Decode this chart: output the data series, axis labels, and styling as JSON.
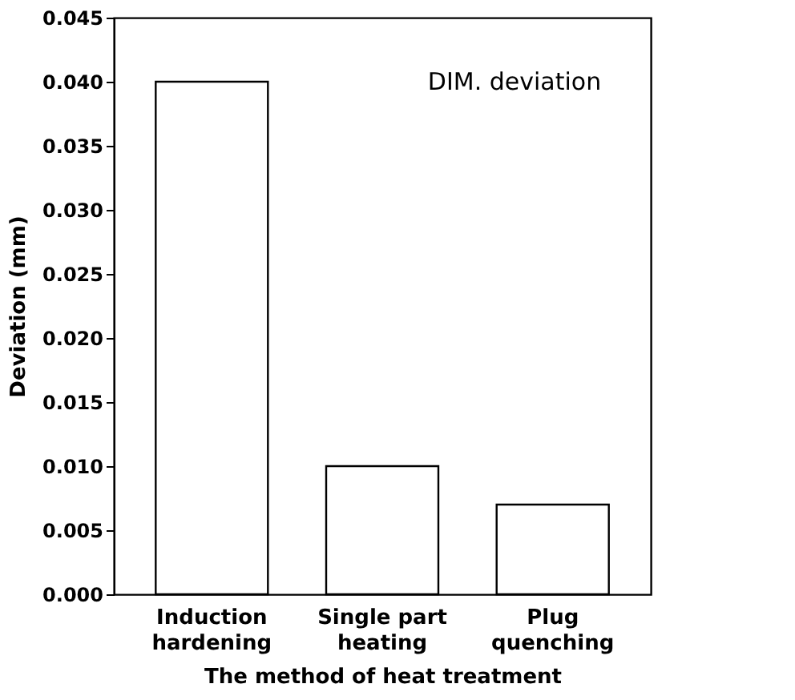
{
  "chart_data": {
    "type": "bar",
    "categories": [
      "Induction hardening",
      "Single part heating",
      "Plug quenching"
    ],
    "values": [
      0.04,
      0.01,
      0.007
    ],
    "color": "#ffffff",
    "xlabel": "The method of heat treatment",
    "ylabel": "Deviation (mm)",
    "annotations": [
      "DIM. deviation"
    ],
    "ylim": [
      0,
      0.045
    ],
    "yticks": [
      {
        "value": 0,
        "label": "0.000"
      },
      {
        "value": 0.005,
        "label": "0.005"
      },
      {
        "value": 0.01,
        "label": "0.010"
      },
      {
        "value": 0.015,
        "label": "0.015"
      },
      {
        "value": 0.02,
        "label": "0.020"
      },
      {
        "value": 0.025,
        "label": "0.025"
      },
      {
        "value": 0.03,
        "label": "0.030"
      },
      {
        "value": 0.035,
        "label": "0.035"
      },
      {
        "value": 0.04,
        "label": "0.040"
      },
      {
        "value": 0.045,
        "label": "0.045"
      }
    ],
    "grid": false
  }
}
